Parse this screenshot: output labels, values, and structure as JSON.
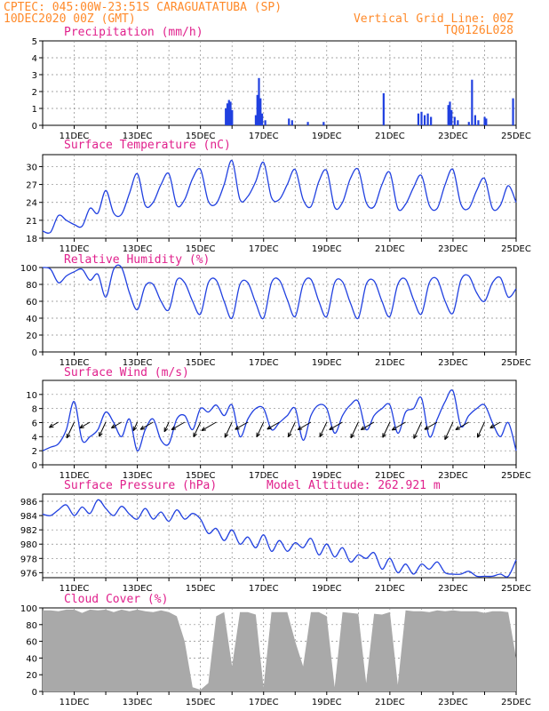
{
  "header": {
    "line1": "CPTEC:   045:00W-23:51S  CARAGUATATUBA (SP)",
    "line2": "10DEC2020 00Z (GMT)",
    "right1": "Vertical Grid Line: 00Z",
    "right2": "TQ0126L028"
  },
  "colors": {
    "header": "#ff8a2a",
    "title": "#e0208c",
    "series": "#2040e0",
    "cloud": "#a9a9a9",
    "grid": "#888888"
  },
  "chart_data": [
    {
      "type": "bar",
      "title": "Precipitation (mm/h)",
      "x_days": [
        11,
        13,
        15,
        17,
        19,
        21,
        23,
        25
      ],
      "xtick_labels": [
        "11DEC",
        "13DEC",
        "15DEC",
        "17DEC",
        "19DEC",
        "21DEC",
        "23DEC",
        "25DEC"
      ],
      "ylim": [
        0,
        5
      ],
      "yticks": [
        0,
        1,
        2,
        3,
        4,
        5
      ],
      "events": [
        {
          "day": 15.8,
          "value": 1.0
        },
        {
          "day": 15.85,
          "value": 1.3
        },
        {
          "day": 15.9,
          "value": 1.5
        },
        {
          "day": 15.95,
          "value": 1.4
        },
        {
          "day": 16.0,
          "value": 0.9
        },
        {
          "day": 16.75,
          "value": 0.6
        },
        {
          "day": 16.8,
          "value": 1.8
        },
        {
          "day": 16.85,
          "value": 2.8
        },
        {
          "day": 16.9,
          "value": 1.6
        },
        {
          "day": 16.95,
          "value": 0.7
        },
        {
          "day": 17.05,
          "value": 0.3
        },
        {
          "day": 17.8,
          "value": 0.4
        },
        {
          "day": 17.9,
          "value": 0.3
        },
        {
          "day": 18.4,
          "value": 0.2
        },
        {
          "day": 18.9,
          "value": 0.2
        },
        {
          "day": 20.8,
          "value": 1.9
        },
        {
          "day": 21.9,
          "value": 0.7
        },
        {
          "day": 22.0,
          "value": 0.8
        },
        {
          "day": 22.1,
          "value": 0.6
        },
        {
          "day": 22.2,
          "value": 0.7
        },
        {
          "day": 22.3,
          "value": 0.5
        },
        {
          "day": 22.85,
          "value": 1.2
        },
        {
          "day": 22.9,
          "value": 1.4
        },
        {
          "day": 22.95,
          "value": 0.9
        },
        {
          "day": 23.05,
          "value": 0.5
        },
        {
          "day": 23.15,
          "value": 0.3
        },
        {
          "day": 23.5,
          "value": 0.2
        },
        {
          "day": 23.6,
          "value": 2.7
        },
        {
          "day": 23.7,
          "value": 0.6
        },
        {
          "day": 23.8,
          "value": 0.3
        },
        {
          "day": 24.0,
          "value": 0.5
        },
        {
          "day": 24.05,
          "value": 0.4
        },
        {
          "day": 24.9,
          "value": 1.6
        }
      ]
    },
    {
      "type": "line",
      "title": "Surface Temperature (nC)",
      "ylim": [
        18,
        32
      ],
      "yticks": [
        18,
        21,
        24,
        27,
        30
      ],
      "xtick_labels": [
        "11DEC",
        "13DEC",
        "15DEC",
        "17DEC",
        "19DEC",
        "21DEC",
        "23DEC",
        "25DEC"
      ],
      "days": [
        10.0,
        10.25,
        10.5,
        10.75,
        11.0,
        11.25,
        11.5,
        11.75,
        12.0,
        12.25,
        12.5,
        12.75,
        13.0,
        13.25,
        13.5,
        13.75,
        14.0,
        14.25,
        14.5,
        14.75,
        15.0,
        15.25,
        15.5,
        15.75,
        16.0,
        16.25,
        16.5,
        16.75,
        17.0,
        17.25,
        17.5,
        17.75,
        18.0,
        18.25,
        18.5,
        18.75,
        19.0,
        19.25,
        19.5,
        19.75,
        20.0,
        20.25,
        20.5,
        20.75,
        21.0,
        21.25,
        21.5,
        21.75,
        22.0,
        22.25,
        22.5,
        22.75,
        23.0,
        23.25,
        23.5,
        23.75,
        24.0,
        24.25,
        24.5,
        24.75,
        25.0
      ],
      "values": [
        19.2,
        19.0,
        21.8,
        21.0,
        20.3,
        20.0,
        23.0,
        22.2,
        26.0,
        22.2,
        22.0,
        25.5,
        28.8,
        23.5,
        24.0,
        27.0,
        28.8,
        23.5,
        24.5,
        28.0,
        29.5,
        24.2,
        23.8,
        27.0,
        31.0,
        24.5,
        25.0,
        27.5,
        30.7,
        24.8,
        24.5,
        27.0,
        29.5,
        24.5,
        23.3,
        27.5,
        29.3,
        23.2,
        24.0,
        28.0,
        29.5,
        24.0,
        23.3,
        27.0,
        29.0,
        23.0,
        23.7,
        26.5,
        28.5,
        23.5,
        23.0,
        27.0,
        29.5,
        23.7,
        23.0,
        26.0,
        28.0,
        23.0,
        23.5,
        26.8,
        24.0
      ]
    },
    {
      "type": "line",
      "title": "Relative Humidity (%)",
      "ylim": [
        0,
        100
      ],
      "yticks": [
        0,
        20,
        40,
        60,
        80,
        100
      ],
      "xtick_labels": [
        "11DEC",
        "13DEC",
        "15DEC",
        "17DEC",
        "19DEC",
        "21DEC",
        "23DEC",
        "25DEC"
      ],
      "days": [
        10.0,
        10.25,
        10.5,
        10.75,
        11.0,
        11.25,
        11.5,
        11.75,
        12.0,
        12.25,
        12.5,
        12.75,
        13.0,
        13.25,
        13.5,
        13.75,
        14.0,
        14.25,
        14.5,
        14.75,
        15.0,
        15.25,
        15.5,
        15.75,
        16.0,
        16.25,
        16.5,
        16.75,
        17.0,
        17.25,
        17.5,
        17.75,
        18.0,
        18.25,
        18.5,
        18.75,
        19.0,
        19.25,
        19.5,
        19.75,
        20.0,
        20.25,
        20.5,
        20.75,
        21.0,
        21.25,
        21.5,
        21.75,
        22.0,
        22.25,
        22.5,
        22.75,
        23.0,
        23.25,
        23.5,
        23.75,
        24.0,
        24.25,
        24.5,
        24.75,
        25.0
      ],
      "values": [
        100,
        98,
        82,
        90,
        95,
        98,
        85,
        92,
        65,
        98,
        100,
        70,
        50,
        78,
        80,
        60,
        50,
        85,
        82,
        60,
        45,
        82,
        85,
        60,
        40,
        80,
        82,
        58,
        40,
        82,
        85,
        62,
        42,
        80,
        86,
        60,
        42,
        82,
        83,
        58,
        40,
        80,
        84,
        60,
        42,
        80,
        86,
        62,
        45,
        82,
        86,
        60,
        46,
        85,
        90,
        70,
        60,
        82,
        88,
        65,
        75
      ]
    },
    {
      "type": "line",
      "title": "Surface Wind (m/s)",
      "ylim": [
        0,
        12
      ],
      "yticks": [
        0,
        2,
        4,
        6,
        8,
        10
      ],
      "xtick_labels": [
        "11DEC",
        "13DEC",
        "15DEC",
        "17DEC",
        "19DEC",
        "21DEC",
        "23DEC",
        "25DEC"
      ],
      "days": [
        10.0,
        10.25,
        10.5,
        10.75,
        11.0,
        11.25,
        11.5,
        11.75,
        12.0,
        12.25,
        12.5,
        12.75,
        13.0,
        13.25,
        13.5,
        13.75,
        14.0,
        14.25,
        14.5,
        14.75,
        15.0,
        15.25,
        15.5,
        15.75,
        16.0,
        16.25,
        16.5,
        16.75,
        17.0,
        17.25,
        17.5,
        17.75,
        18.0,
        18.25,
        18.5,
        18.75,
        19.0,
        19.25,
        19.5,
        19.75,
        20.0,
        20.25,
        20.5,
        20.75,
        21.0,
        21.25,
        21.5,
        21.75,
        22.0,
        22.25,
        22.5,
        22.75,
        23.0,
        23.25,
        23.5,
        23.75,
        24.0,
        24.25,
        24.5,
        24.75,
        25.0
      ],
      "values": [
        2,
        2.5,
        3,
        5,
        9,
        3.5,
        4,
        5,
        7.5,
        6,
        4,
        6.5,
        2,
        5,
        6.5,
        3.5,
        3,
        6.5,
        7,
        5,
        8,
        7.5,
        8.5,
        7,
        8.5,
        4,
        6.5,
        8,
        8,
        5,
        6,
        7,
        8,
        3.5,
        7,
        8.5,
        8,
        4.5,
        7,
        8.5,
        9,
        5,
        7,
        8,
        8.5,
        4.5,
        7.5,
        8,
        9.5,
        4,
        6.5,
        9,
        10.5,
        5.5,
        7,
        8,
        8.5,
        6,
        4,
        6,
        2
      ],
      "arrows_label": "wind direction vectors"
    },
    {
      "type": "line",
      "title": "Surface Pressure (hPa)",
      "annotation": "Model Altitude: 262.921 m",
      "ylim": [
        975.3,
        987
      ],
      "yticks": [
        976,
        978,
        980,
        982,
        984,
        986
      ],
      "xtick_labels": [
        "11DEC",
        "13DEC",
        "15DEC",
        "17DEC",
        "19DEC",
        "21DEC",
        "23DEC",
        "25DEC"
      ],
      "days": [
        10.0,
        10.25,
        10.5,
        10.75,
        11.0,
        11.25,
        11.5,
        11.75,
        12.0,
        12.25,
        12.5,
        12.75,
        13.0,
        13.25,
        13.5,
        13.75,
        14.0,
        14.25,
        14.5,
        14.75,
        15.0,
        15.25,
        15.5,
        15.75,
        16.0,
        16.25,
        16.5,
        16.75,
        17.0,
        17.25,
        17.5,
        17.75,
        18.0,
        18.25,
        18.5,
        18.75,
        19.0,
        19.25,
        19.5,
        19.75,
        20.0,
        20.25,
        20.5,
        20.75,
        21.0,
        21.25,
        21.5,
        21.75,
        22.0,
        22.25,
        22.5,
        22.75,
        23.0,
        23.25,
        23.5,
        23.75,
        24.0,
        24.25,
        24.5,
        24.75,
        25.0
      ],
      "values": [
        984.2,
        984,
        984.8,
        985.5,
        984,
        985.2,
        984.3,
        986.2,
        985,
        984,
        985.3,
        984.2,
        983.5,
        985,
        983.5,
        984.5,
        983.2,
        984.8,
        983.5,
        984.3,
        983.5,
        981.5,
        982.2,
        980.5,
        982,
        980,
        981,
        979.5,
        981.3,
        979,
        980.5,
        979,
        980.2,
        979.5,
        980.8,
        978.5,
        980,
        978.2,
        979.5,
        977.5,
        978.5,
        978,
        978.8,
        976.5,
        978,
        976,
        977.2,
        975.8,
        977.2,
        976.5,
        977.5,
        976,
        975.8,
        975.8,
        976.2,
        975.5,
        975.5,
        975.5,
        975.8,
        975.5,
        977.8
      ]
    },
    {
      "type": "area",
      "title": "Cloud Cover (%)",
      "ylim": [
        0,
        100
      ],
      "yticks": [
        0,
        20,
        40,
        60,
        80,
        100
      ],
      "xtick_labels": [
        "11DEC",
        "13DEC",
        "15DEC",
        "17DEC",
        "19DEC",
        "21DEC",
        "23DEC",
        "25DEC"
      ],
      "days": [
        10.0,
        10.25,
        10.5,
        10.75,
        11.0,
        11.25,
        11.5,
        11.75,
        12.0,
        12.25,
        12.5,
        12.75,
        13.0,
        13.25,
        13.5,
        13.75,
        14.0,
        14.25,
        14.5,
        14.75,
        15.0,
        15.25,
        15.5,
        15.75,
        16.0,
        16.25,
        16.5,
        16.75,
        17.0,
        17.25,
        17.5,
        17.75,
        18.0,
        18.25,
        18.5,
        18.75,
        19.0,
        19.25,
        19.5,
        19.75,
        20.0,
        20.25,
        20.5,
        20.75,
        21.0,
        21.25,
        21.5,
        21.75,
        22.0,
        22.25,
        22.5,
        22.75,
        23.0,
        23.25,
        23.5,
        23.75,
        24.0,
        24.25,
        24.5,
        24.75,
        25.0
      ],
      "values": [
        97,
        97,
        96,
        98,
        98,
        94,
        98,
        97,
        98,
        95,
        98,
        96,
        98,
        96,
        95,
        97,
        95,
        90,
        60,
        5,
        2,
        10,
        90,
        95,
        30,
        95,
        95,
        92,
        5,
        95,
        95,
        95,
        60,
        30,
        95,
        95,
        90,
        5,
        95,
        94,
        93,
        10,
        93,
        92,
        95,
        8,
        97,
        96,
        96,
        95,
        97,
        96,
        97,
        96,
        96,
        96,
        94,
        96,
        96,
        95,
        40
      ]
    }
  ]
}
